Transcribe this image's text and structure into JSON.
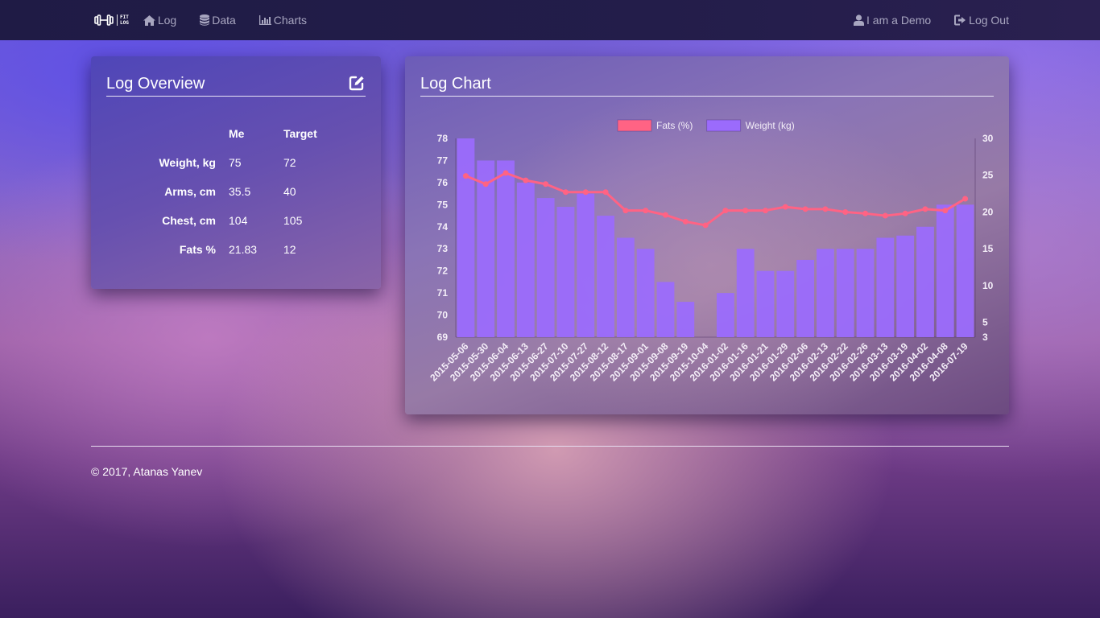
{
  "navbar": {
    "brand": {
      "line1": "FIT",
      "line2": "LOG"
    },
    "links": [
      {
        "label": "Log",
        "icon": "home-icon"
      },
      {
        "label": "Data",
        "icon": "database-icon"
      },
      {
        "label": "Charts",
        "icon": "bar-chart-icon"
      }
    ],
    "right": [
      {
        "label": "I am a Demo",
        "icon": "user-icon"
      },
      {
        "label": "Log Out",
        "icon": "logout-icon"
      }
    ]
  },
  "overview": {
    "title": "Log Overview",
    "edit_icon": "edit-icon",
    "columns": [
      "",
      "Me",
      "Target"
    ],
    "rows": [
      {
        "label": "Weight, kg",
        "me": "75",
        "target": "72"
      },
      {
        "label": "Arms, cm",
        "me": "35.5",
        "target": "40"
      },
      {
        "label": "Chest, cm",
        "me": "104",
        "target": "105"
      },
      {
        "label": "Fats %",
        "me": "21.83",
        "target": "12"
      }
    ]
  },
  "chart_panel": {
    "title": "Log Chart"
  },
  "chart_data": {
    "type": "bar",
    "title": "Log Chart",
    "categories": [
      "2015-05-06",
      "2015-05-30",
      "2015-06-04",
      "2015-06-13",
      "2015-06-27",
      "2015-07-10",
      "2015-07-27",
      "2015-08-12",
      "2015-08-17",
      "2015-09-01",
      "2015-09-08",
      "2015-09-19",
      "2015-10-04",
      "2016-01-02",
      "2016-01-16",
      "2016-01-21",
      "2016-01-29",
      "2016-02-06",
      "2016-02-13",
      "2016-02-22",
      "2016-02-26",
      "2016-03-13",
      "2016-03-19",
      "2016-04-02",
      "2016-04-08",
      "2016-07-19"
    ],
    "series": [
      {
        "name": "Fats (%)",
        "type": "line",
        "axis": "right",
        "color": "#ff6384",
        "values": [
          24.9,
          23.8,
          25.3,
          24.3,
          23.8,
          22.7,
          22.7,
          22.7,
          20.2,
          20.2,
          19.6,
          18.7,
          18.2,
          20.2,
          20.2,
          20.2,
          20.7,
          20.4,
          20.4,
          20.0,
          19.8,
          19.5,
          19.8,
          20.4,
          20.2,
          21.8
        ]
      },
      {
        "name": "Weight (kg)",
        "type": "bar",
        "axis": "left",
        "color": "#9b6bfc",
        "values": [
          78,
          77,
          77,
          76,
          75.3,
          74.9,
          75.5,
          74.5,
          73.5,
          73,
          71.5,
          70.6,
          69,
          71,
          73,
          72,
          72,
          72.5,
          73,
          73,
          73,
          73.5,
          73.6,
          74,
          75,
          75
        ]
      }
    ],
    "xlabel": "",
    "ylabel_left": "",
    "ylabel_right": "",
    "ylim_left": [
      69,
      78
    ],
    "yticks_left": [
      69,
      70,
      71,
      72,
      73,
      74,
      75,
      76,
      77,
      78
    ],
    "ylim_right": [
      3,
      30
    ],
    "yticks_right": [
      3,
      5,
      10,
      15,
      20,
      25,
      30
    ],
    "legend_position": "top",
    "grid": false
  },
  "footer": {
    "text": "© 2017, Atanas Yanev"
  }
}
